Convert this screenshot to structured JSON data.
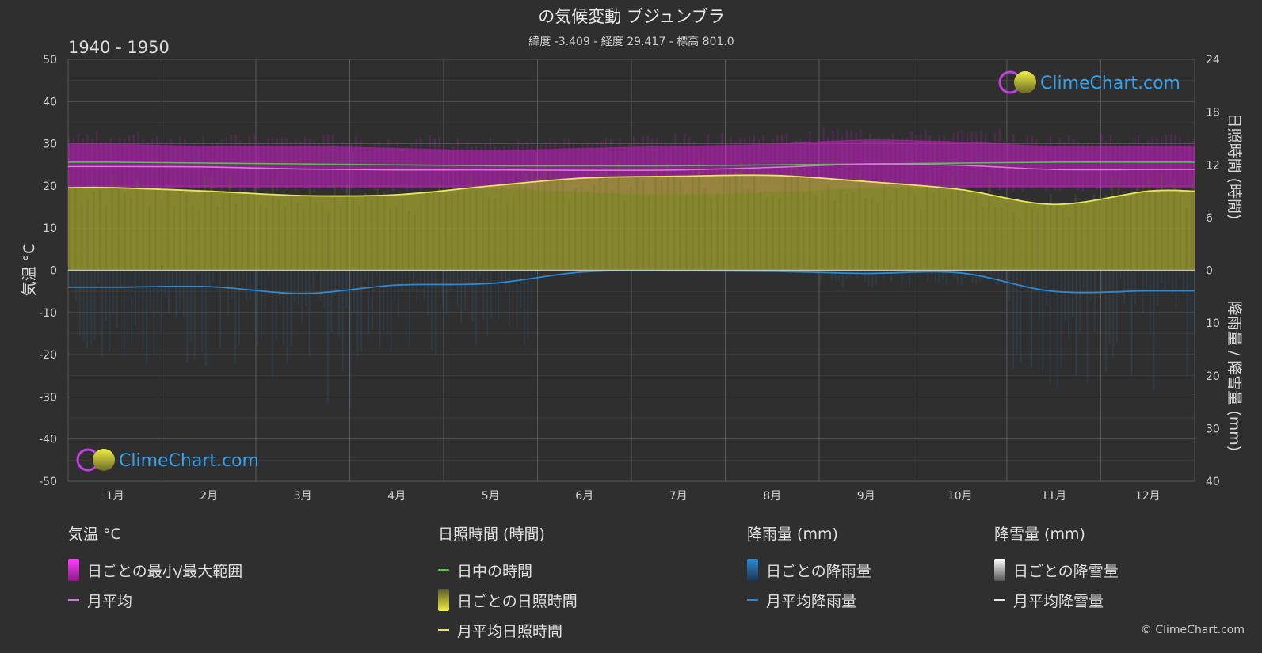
{
  "title": "の気候変動 ブジュンブラ",
  "subtitle": "緯度 -3.409 - 経度 29.417 - 標高 801.0",
  "period": "1940 - 1950",
  "watermark": "ClimeChart.com",
  "copyright": "© ClimeChart.com",
  "chart_data": {
    "type": "area",
    "categories": [
      "1月",
      "2月",
      "3月",
      "4月",
      "5月",
      "6月",
      "7月",
      "8月",
      "9月",
      "10月",
      "11月",
      "12月"
    ],
    "y_left": {
      "label": "気温 °C",
      "range": [
        -50,
        50
      ],
      "ticks": [
        "50",
        "40",
        "30",
        "20",
        "10",
        "0",
        "-10",
        "-20",
        "-30",
        "-40",
        "-50"
      ]
    },
    "y_right_top": {
      "label": "日照時間 (時間)",
      "range": [
        0,
        24
      ],
      "ticks": [
        "24",
        "18",
        "12",
        "6",
        "0"
      ]
    },
    "y_right_bottom": {
      "label": "降雨量 / 降雪量 (mm)",
      "range": [
        0,
        40
      ],
      "ticks": [
        "0",
        "10",
        "20",
        "30",
        "40"
      ]
    },
    "series": [
      {
        "name": "日中の時間",
        "axis": "sunshine_hours",
        "color": "#3fcf3f",
        "values": [
          12.3,
          12.2,
          12.1,
          12.0,
          11.9,
          11.9,
          11.9,
          12.0,
          12.1,
          12.2,
          12.3,
          12.3
        ]
      },
      {
        "name": "月平均日照時間",
        "axis": "sunshine_hours",
        "color": "#e6e65a",
        "values": [
          9.4,
          9.0,
          8.5,
          8.6,
          9.6,
          10.5,
          10.7,
          10.8,
          10.1,
          9.2,
          7.5,
          9.0
        ]
      },
      {
        "name": "月平均",
        "axis": "temperature_c",
        "color": "#e070e0",
        "values": [
          24.6,
          24.5,
          24.0,
          23.8,
          23.8,
          23.7,
          23.8,
          24.4,
          25.2,
          24.9,
          23.9,
          23.9
        ]
      },
      {
        "name": "日ごとの最小/最大範囲 (max)",
        "axis": "temperature_c",
        "color": "#c71fc7",
        "values": [
          30.0,
          29.5,
          29.5,
          29.0,
          28.5,
          29.0,
          29.5,
          30.0,
          31.0,
          30.5,
          29.5,
          29.5
        ]
      },
      {
        "name": "日ごとの最小/最大範囲 (min)",
        "axis": "temperature_c",
        "color": "#c71fc7",
        "values": [
          19.5,
          19.5,
          19.5,
          19.5,
          19.5,
          18.5,
          18.0,
          18.5,
          19.5,
          19.5,
          19.5,
          19.5
        ]
      },
      {
        "name": "月平均降雨量",
        "axis": "precip_mm",
        "color": "#2b8ad6",
        "values": [
          3.2,
          3.1,
          4.4,
          2.8,
          2.5,
          0.3,
          0.1,
          0.2,
          0.6,
          0.5,
          4.0,
          3.9
        ]
      }
    ]
  },
  "legend": {
    "temp": {
      "title": "気温 °C",
      "range": "日ごとの最小/最大範囲",
      "avg": "月平均"
    },
    "sun": {
      "title": "日照時間 (時間)",
      "daylight": "日中の時間",
      "daily": "日ごとの日照時間",
      "avg": "月平均日照時間"
    },
    "rain": {
      "title": "降雨量 (mm)",
      "daily": "日ごとの降雨量",
      "avg": "月平均降雨量"
    },
    "snow": {
      "title": "降雪量 (mm)",
      "daily": "日ごとの降雪量",
      "avg": "月平均降雪量"
    }
  },
  "colors": {
    "background": "#2f2f2f",
    "grid": "#5a5a5a",
    "temp_range": "#c71fc7",
    "temp_avg": "#e070e0",
    "daylight": "#3fcf3f",
    "sunshine": "#9a9a2e",
    "sunshine_avg": "#e6e65a",
    "rain": "#2b8ad6",
    "snow": "#e8e8e8",
    "watermark": "#3aa0e8"
  }
}
